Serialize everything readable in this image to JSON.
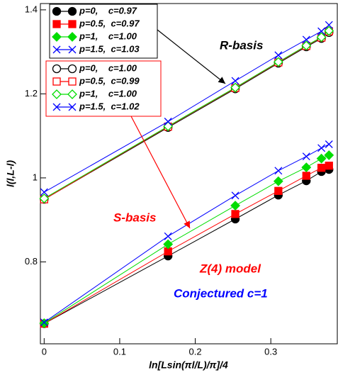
{
  "chart_data": {
    "type": "scatter",
    "x_label": "ln[Lsin(πl/L)/π]/4",
    "y_label": "l(l,L-l)",
    "xlim": [
      -0.005,
      0.388
    ],
    "xticks": [
      0,
      0.1,
      0.2,
      0.3
    ],
    "ylim": [
      0.605,
      1.415
    ],
    "yticks": [
      0.8,
      1,
      1.2,
      1.4
    ],
    "x": [
      0,
      0.164,
      0.253,
      0.31,
      0.347,
      0.367,
      0.377
    ],
    "series": [
      {
        "name": "p=0,    c=0.97",
        "color": "#000000",
        "marker": "circle",
        "filled": true,
        "values": [
          0.653,
          0.814,
          0.902,
          0.959,
          0.993,
          1.015,
          1.02
        ]
      },
      {
        "name": "p=0.5,  c=0.97",
        "color": "#ff0000",
        "marker": "square",
        "filled": true,
        "values": [
          0.653,
          0.825,
          0.914,
          0.969,
          1.005,
          1.024,
          1.029
        ]
      },
      {
        "name": "p=1,    c=1.00",
        "color": "#00dd00",
        "marker": "diamond",
        "filled": true,
        "values": [
          0.654,
          0.842,
          0.934,
          0.992,
          1.025,
          1.046,
          1.054
        ]
      },
      {
        "name": "p=1.5,  c=1.03",
        "color": "#0000ff",
        "marker": "x",
        "filled": false,
        "values": [
          0.656,
          0.861,
          0.958,
          1.017,
          1.051,
          1.071,
          1.08
        ]
      },
      {
        "name": "p=0,    c=1.00",
        "color": "#000000",
        "marker": "circle",
        "filled": false,
        "values": [
          0.949,
          1.12,
          1.212,
          1.273,
          1.312,
          1.332,
          1.346
        ]
      },
      {
        "name": "p=0.5,  c=0.99",
        "color": "#ff0000",
        "marker": "square",
        "filled": false,
        "values": [
          0.949,
          1.122,
          1.214,
          1.275,
          1.314,
          1.334,
          1.349
        ]
      },
      {
        "name": "p=1,    c=1.00",
        "color": "#00dd00",
        "marker": "diamond",
        "filled": false,
        "values": [
          0.951,
          1.123,
          1.215,
          1.276,
          1.315,
          1.335,
          1.35
        ]
      },
      {
        "name": "p=1.5,  c=1.02",
        "color": "#0000ff",
        "marker": "x",
        "filled": false,
        "values": [
          0.966,
          1.134,
          1.231,
          1.292,
          1.329,
          1.349,
          1.364
        ]
      }
    ],
    "annotations": [
      {
        "text": "R-basis",
        "color": "#000000"
      },
      {
        "text": "S-basis",
        "color": "#ff0000"
      },
      {
        "text": "Z(4) model",
        "color": "#ff0000"
      },
      {
        "text": "Conjectured c=1",
        "color": "#0000ff"
      }
    ]
  }
}
